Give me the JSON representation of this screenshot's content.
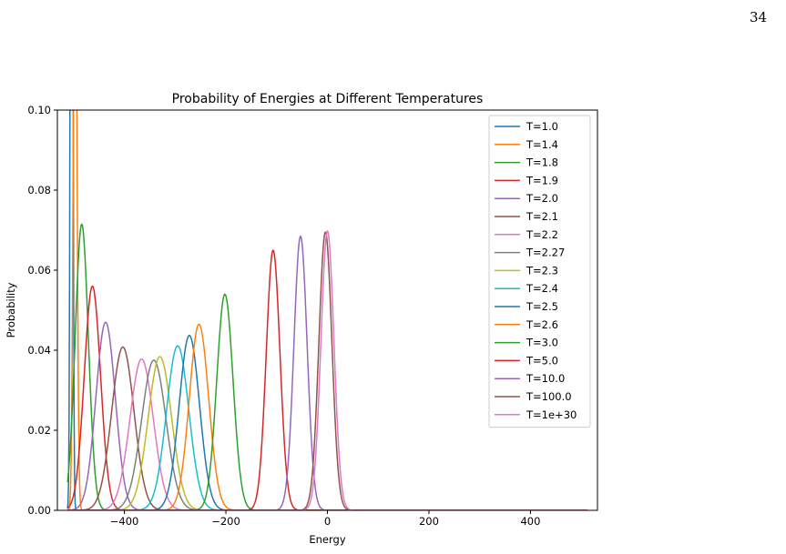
{
  "page": {
    "number": "34"
  },
  "chart_data": {
    "type": "line",
    "title": "Probability of Energies at Different Temperatures",
    "xlabel": "Energy",
    "ylabel": "Probability",
    "xlim": [
      -532,
      532
    ],
    "ylim": [
      0,
      0.1
    ],
    "xticks": [
      -400,
      -200,
      0,
      200,
      400
    ],
    "xtick_labels": [
      "−400",
      "−200",
      "0",
      "200",
      "400"
    ],
    "yticks": [
      0,
      0.02,
      0.04,
      0.06,
      0.08,
      0.1
    ],
    "ytick_labels": [
      "0.00",
      "0.02",
      "0.04",
      "0.06",
      "0.08",
      "0.10"
    ],
    "grid": false,
    "legend_position": "top-right",
    "x_domain": [
      -512,
      512
    ],
    "series": [
      {
        "name": "T=1.0",
        "color": "#1f77b4",
        "peak_x": -504,
        "peak_y": 0.3,
        "sigma": 2.2
      },
      {
        "name": "T=1.4",
        "color": "#ff7f0e",
        "peak_x": -497,
        "peak_y": 0.16,
        "sigma": 3.5
      },
      {
        "name": "T=1.8",
        "color": "#2ca02c",
        "peak_x": -484,
        "peak_y": 0.0715,
        "sigma": 13
      },
      {
        "name": "T=1.9",
        "color": "#d62728",
        "peak_x": -463,
        "peak_y": 0.056,
        "sigma": 16
      },
      {
        "name": "T=2.0",
        "color": "#9467bd",
        "peak_x": -437,
        "peak_y": 0.047,
        "sigma": 19
      },
      {
        "name": "T=2.1",
        "color": "#8c564b",
        "peak_x": -403,
        "peak_y": 0.0408,
        "sigma": 22
      },
      {
        "name": "T=2.2",
        "color": "#e377c2",
        "peak_x": -366,
        "peak_y": 0.0378,
        "sigma": 23
      },
      {
        "name": "T=2.27",
        "color": "#7f7f7f",
        "peak_x": -342,
        "peak_y": 0.0375,
        "sigma": 24
      },
      {
        "name": "T=2.3",
        "color": "#bcbd22",
        "peak_x": -330,
        "peak_y": 0.0384,
        "sigma": 23
      },
      {
        "name": "T=2.4",
        "color": "#17becf",
        "peak_x": -295,
        "peak_y": 0.0411,
        "sigma": 22
      },
      {
        "name": "T=2.5",
        "color": "#1f77b4",
        "peak_x": -272,
        "peak_y": 0.0437,
        "sigma": 20
      },
      {
        "name": "T=2.6",
        "color": "#ff7f0e",
        "peak_x": -253,
        "peak_y": 0.0465,
        "sigma": 19
      },
      {
        "name": "T=3.0",
        "color": "#2ca02c",
        "peak_x": -202,
        "peak_y": 0.054,
        "sigma": 16
      },
      {
        "name": "T=5.0",
        "color": "#d62728",
        "peak_x": -107,
        "peak_y": 0.065,
        "sigma": 13.5
      },
      {
        "name": "T=10.0",
        "color": "#9467bd",
        "peak_x": -53,
        "peak_y": 0.0685,
        "sigma": 13
      },
      {
        "name": "T=100.0",
        "color": "#8c564b",
        "peak_x": -4,
        "peak_y": 0.0695,
        "sigma": 12.8
      },
      {
        "name": "T=1e+30",
        "color": "#e377c2",
        "peak_x": 0,
        "peak_y": 0.0698,
        "sigma": 12.8
      }
    ]
  }
}
